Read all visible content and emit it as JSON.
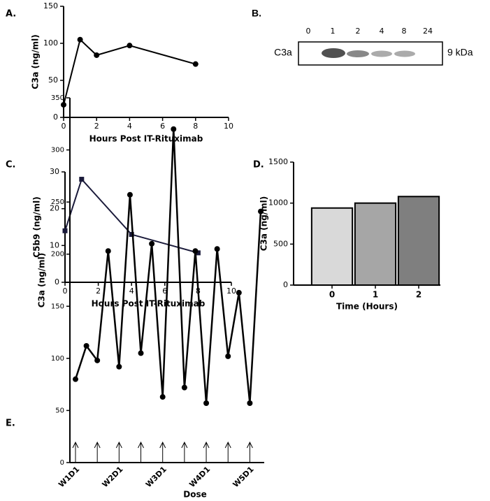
{
  "chart_data": [
    {
      "type": "line",
      "panel": "A.",
      "x": [
        0,
        1,
        2,
        4,
        8
      ],
      "series": [
        {
          "color": "#000000",
          "values": [
            17,
            105,
            84,
            97,
            72
          ]
        }
      ],
      "marker": "circle",
      "xlim": [
        0,
        10
      ],
      "xticks": [
        0,
        2,
        4,
        6,
        8,
        10
      ],
      "ylim": [
        0,
        150
      ],
      "yticks": [
        0,
        50,
        100,
        150
      ],
      "x_label": "Hours Post IT-Rituximab",
      "y_label": "C3a (ng/ml)"
    },
    {
      "type": "line",
      "panel": "C.",
      "x": [
        0,
        1,
        4,
        8
      ],
      "series": [
        {
          "color": "#1a1a3a",
          "values": [
            14,
            28,
            13,
            8
          ]
        }
      ],
      "marker": "square",
      "xlim": [
        0,
        10
      ],
      "xticks": [
        0,
        2,
        4,
        6,
        8,
        10
      ],
      "ylim": [
        0,
        30
      ],
      "yticks": [
        0,
        10,
        20,
        30
      ],
      "x_label": "Hours Post IT-Rituximab",
      "y_label": "C5b9 (ng/ml)"
    },
    {
      "type": "bar",
      "panel": "D.",
      "categories": [
        "0",
        "1",
        "2"
      ],
      "values": [
        940,
        1000,
        1080
      ],
      "colors": [
        "#d9d9d9",
        "#a6a6a6",
        "#7f7f7f"
      ],
      "ylim": [
        0,
        1500
      ],
      "yticks": [
        0,
        500,
        1000,
        1500
      ],
      "x_label": "Time (Hours)",
      "y_label": "C3a (ng/ml)"
    },
    {
      "type": "category_line",
      "panel": "E.",
      "categories": [
        "W1D1",
        null,
        null,
        null,
        "W2D1",
        null,
        null,
        null,
        "W3D1",
        null,
        null,
        null,
        "W4D1",
        null,
        null,
        null,
        "W5D1",
        null
      ],
      "series": [
        {
          "color": "#000000",
          "values": [
            80,
            112,
            98,
            203,
            92,
            257,
            105,
            210,
            63,
            320,
            72,
            203,
            57,
            205,
            102,
            163,
            57,
            241
          ]
        }
      ],
      "marker": "circle",
      "ylim": [
        0,
        350
      ],
      "yticks": [
        0,
        50,
        100,
        150,
        200,
        250,
        300,
        350
      ],
      "x_label": "Dose",
      "y_label": "C3a (ng/ml)"
    }
  ],
  "blot": {
    "panel": "B.",
    "lanes": [
      "0",
      "1",
      "2",
      "4",
      "8",
      "24"
    ],
    "protein": "C3a",
    "size": "9 kDa"
  }
}
